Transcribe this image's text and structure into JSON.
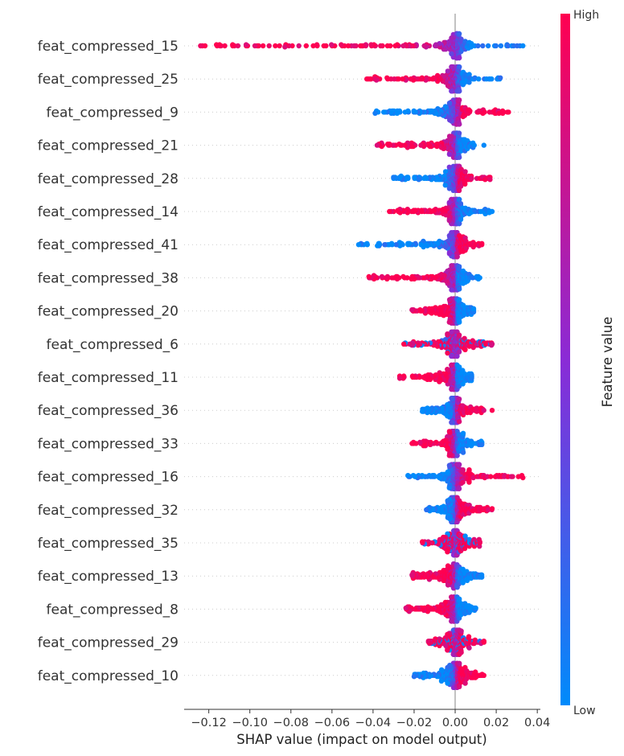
{
  "chart_data": {
    "type": "scatter",
    "subtype": "shap-beeswarm",
    "xlabel": "SHAP value (impact on model output)",
    "xlim": [
      -0.132,
      0.0415
    ],
    "xticks": [
      -0.12,
      -0.1,
      -0.08,
      -0.06,
      -0.04,
      -0.02,
      0.0,
      0.02,
      0.04
    ],
    "xtick_labels": [
      "−0.12",
      "−0.10",
      "−0.08",
      "−0.06",
      "−0.04",
      "−0.02",
      "0.00",
      "0.02",
      "0.04"
    ],
    "colorbar": {
      "label": "Feature value",
      "high_label": "High",
      "low_label": "Low",
      "high_color": "#ff0051",
      "low_color": "#008bfb"
    },
    "features": [
      {
        "name": "feat_compressed_15",
        "min": -0.124,
        "max": 0.033,
        "high_values_push": "negative"
      },
      {
        "name": "feat_compressed_25",
        "min": -0.043,
        "max": 0.022,
        "high_values_push": "negative"
      },
      {
        "name": "feat_compressed_9",
        "min": -0.039,
        "max": 0.026,
        "high_values_push": "positive"
      },
      {
        "name": "feat_compressed_21",
        "min": -0.038,
        "max": 0.014,
        "high_values_push": "negative"
      },
      {
        "name": "feat_compressed_28",
        "min": -0.03,
        "max": 0.017,
        "high_values_push": "positive"
      },
      {
        "name": "feat_compressed_14",
        "min": -0.032,
        "max": 0.018,
        "high_values_push": "negative"
      },
      {
        "name": "feat_compressed_41",
        "min": -0.047,
        "max": 0.013,
        "high_values_push": "positive"
      },
      {
        "name": "feat_compressed_38",
        "min": -0.042,
        "max": 0.012,
        "high_values_push": "negative"
      },
      {
        "name": "feat_compressed_20",
        "min": -0.021,
        "max": 0.009,
        "high_values_push": "negative"
      },
      {
        "name": "feat_compressed_6",
        "min": -0.025,
        "max": 0.018,
        "high_values_push": "mixed"
      },
      {
        "name": "feat_compressed_11",
        "min": -0.027,
        "max": 0.008,
        "high_values_push": "negative"
      },
      {
        "name": "feat_compressed_36",
        "min": -0.016,
        "max": 0.018,
        "high_values_push": "positive"
      },
      {
        "name": "feat_compressed_33",
        "min": -0.021,
        "max": 0.013,
        "high_values_push": "negative"
      },
      {
        "name": "feat_compressed_16",
        "min": -0.023,
        "max": 0.033,
        "high_values_push": "positive"
      },
      {
        "name": "feat_compressed_32",
        "min": -0.014,
        "max": 0.018,
        "high_values_push": "positive"
      },
      {
        "name": "feat_compressed_35",
        "min": -0.016,
        "max": 0.012,
        "high_values_push": "mixed"
      },
      {
        "name": "feat_compressed_13",
        "min": -0.021,
        "max": 0.013,
        "high_values_push": "negative"
      },
      {
        "name": "feat_compressed_8",
        "min": -0.024,
        "max": 0.01,
        "high_values_push": "negative"
      },
      {
        "name": "feat_compressed_29",
        "min": -0.013,
        "max": 0.014,
        "high_values_push": "mixed"
      },
      {
        "name": "feat_compressed_10",
        "min": -0.02,
        "max": 0.014,
        "high_values_push": "positive"
      }
    ]
  }
}
